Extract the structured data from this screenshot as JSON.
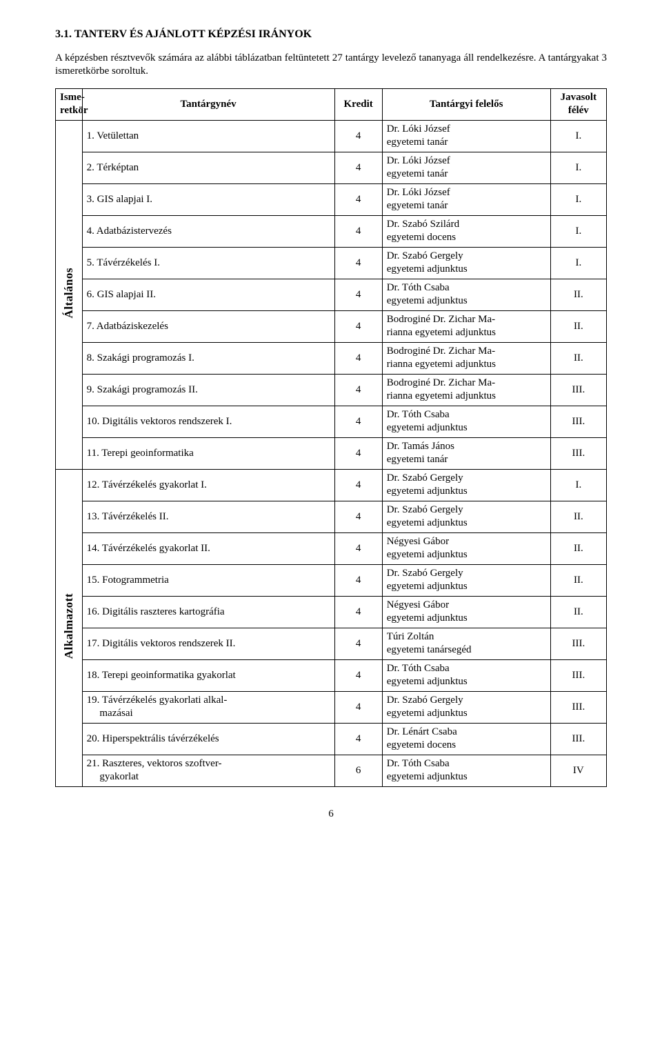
{
  "title": "3.1. TANTERV ÉS AJÁNLOTT KÉPZÉSI IRÁNYOK",
  "intro": "A képzésben résztvevők számára az alábbi táblázatban feltüntetett 27 tantárgy levelező tananyaga áll rendelkezésre. A tantárgyakat 3 ismeretkörbe soroltuk.",
  "headers": {
    "isme": "Isme-retkör",
    "name": "Tantárgynév",
    "kredit": "Kredit",
    "felelos": "Tantárgyi felelős",
    "felev": "Javasolt félév"
  },
  "groups": [
    {
      "label": "Általános",
      "rows": [
        {
          "name": "1. Vetülettan",
          "kredit": "4",
          "felelos_l1": "Dr. Lóki József",
          "felelos_l2": "egyetemi tanár",
          "felev": "I."
        },
        {
          "name": "2. Térképtan",
          "kredit": "4",
          "felelos_l1": "Dr. Lóki József",
          "felelos_l2": "egyetemi tanár",
          "felev": "I."
        },
        {
          "name": "3. GIS alapjai I.",
          "kredit": "4",
          "felelos_l1": "Dr. Lóki József",
          "felelos_l2": "egyetemi tanár",
          "felev": "I."
        },
        {
          "name": "4. Adatbázistervezés",
          "kredit": "4",
          "felelos_l1": "Dr. Szabó Szilárd",
          "felelos_l2": "egyetemi docens",
          "felev": "I."
        },
        {
          "name": "5. Távérzékelés I.",
          "kredit": "4",
          "felelos_l1": "Dr. Szabó Gergely",
          "felelos_l2": "egyetemi adjunktus",
          "felev": "I."
        },
        {
          "name": "6. GIS alapjai II.",
          "kredit": "4",
          "felelos_l1": "Dr. Tóth Csaba",
          "felelos_l2": "egyetemi adjunktus",
          "felev": "II."
        },
        {
          "name": "7. Adatbáziskezelés",
          "kredit": "4",
          "felelos_l1": "Bodroginé Dr. Zichar Ma-",
          "felelos_l2": "rianna egyetemi adjunktus",
          "felev": "II."
        },
        {
          "name": "8. Szakági programozás I.",
          "kredit": "4",
          "felelos_l1": "Bodroginé Dr. Zichar Ma-",
          "felelos_l2": "rianna egyetemi adjunktus",
          "felev": "II."
        },
        {
          "name": "9. Szakági programozás II.",
          "kredit": "4",
          "felelos_l1": "Bodroginé Dr. Zichar Ma-",
          "felelos_l2": "rianna egyetemi adjunktus",
          "felev": "III."
        },
        {
          "name": "10. Digitális vektoros rendszerek I.",
          "kredit": "4",
          "felelos_l1": "Dr. Tóth Csaba",
          "felelos_l2": "egyetemi adjunktus",
          "felev": "III."
        },
        {
          "name": "11. Terepi geoinformatika",
          "kredit": "4",
          "felelos_l1": "Dr. Tamás János",
          "felelos_l2": "egyetemi tanár",
          "felev": "III."
        }
      ]
    },
    {
      "label": "Alkalmazott",
      "rows": [
        {
          "name": "12. Távérzékelés gyakorlat I.",
          "kredit": "4",
          "felelos_l1": "Dr. Szabó Gergely",
          "felelos_l2": "egyetemi adjunktus",
          "felev": "I."
        },
        {
          "name": "13. Távérzékelés II.",
          "kredit": "4",
          "felelos_l1": "Dr. Szabó Gergely",
          "felelos_l2": "egyetemi adjunktus",
          "felev": "II."
        },
        {
          "name": "14. Távérzékelés gyakorlat II.",
          "kredit": "4",
          "felelos_l1": "Négyesi Gábor",
          "felelos_l2": "egyetemi adjunktus",
          "felev": "II."
        },
        {
          "name": "15. Fotogrammetria",
          "kredit": "4",
          "felelos_l1": "Dr. Szabó Gergely",
          "felelos_l2": "egyetemi adjunktus",
          "felev": "II."
        },
        {
          "name": "16. Digitális raszteres kartográfia",
          "kredit": "4",
          "felelos_l1": "Négyesi Gábor",
          "felelos_l2": "egyetemi adjunktus",
          "felev": "II."
        },
        {
          "name": "17. Digitális vektoros rendszerek II.",
          "kredit": "4",
          "felelos_l1": "Túri Zoltán",
          "felelos_l2": "egyetemi tanársegéd",
          "felev": "III."
        },
        {
          "name": "18. Terepi geoinformatika gyakorlat",
          "kredit": "4",
          "felelos_l1": "Dr. Tóth Csaba",
          "felelos_l2": "egyetemi adjunktus",
          "felev": "III."
        },
        {
          "name": "19. Távérzékelés gyakorlati alkal-\n     mazásai",
          "kredit": "4",
          "felelos_l1": "Dr. Szabó Gergely",
          "felelos_l2": "egyetemi adjunktus",
          "felev": "III."
        },
        {
          "name": "20. Hiperspektrális távérzékelés",
          "kredit": "4",
          "felelos_l1": "Dr. Lénárt Csaba",
          "felelos_l2": "egyetemi docens",
          "felev": "III."
        },
        {
          "name": "21. Raszteres, vektoros szoftver-\n     gyakorlat",
          "kredit": "6",
          "felelos_l1": "Dr. Tóth Csaba",
          "felelos_l2": "egyetemi adjunktus",
          "felev": "IV"
        }
      ]
    }
  ],
  "page_number": "6",
  "style": {
    "background": "#ffffff",
    "text": "#000000",
    "border": "#000000",
    "font_family": "Times New Roman",
    "body_fontsize": 15,
    "title_fontsize": 16,
    "vertical_fontsize": 17
  }
}
